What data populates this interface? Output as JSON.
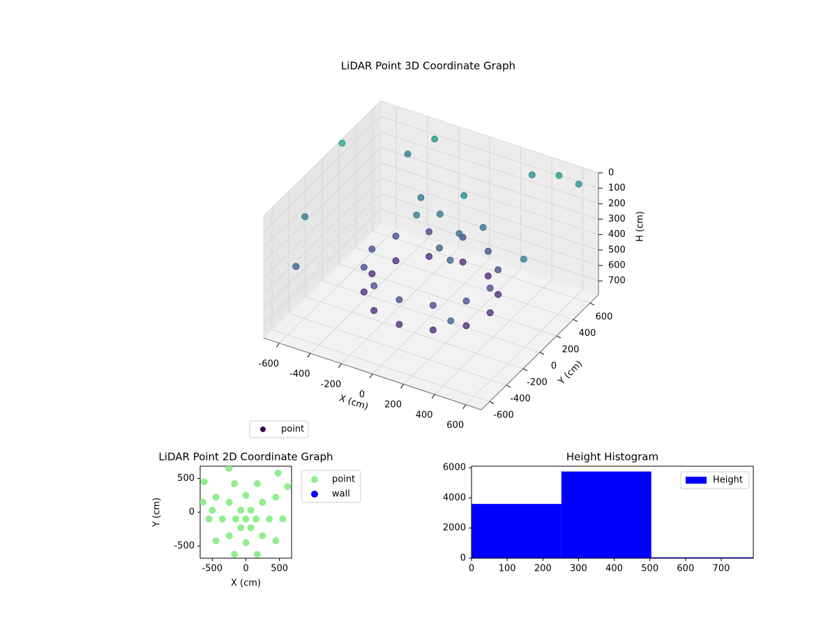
{
  "chart_data": [
    {
      "type": "scatter3d",
      "title": "LiDAR Point 3D Coordinate Graph",
      "xlabel": "X (cm)",
      "ylabel": "Y (cm)",
      "zlabel": "H (cm)",
      "xlim": [
        -700,
        700
      ],
      "ylim": [
        -700,
        700
      ],
      "zlim": [
        790,
        0
      ],
      "xticks": [
        -600,
        -400,
        -200,
        0,
        200,
        400,
        600
      ],
      "yticks": [
        -600,
        -400,
        -200,
        0,
        200,
        400,
        600
      ],
      "zticks": [
        0,
        100,
        200,
        300,
        400,
        500,
        600,
        700
      ],
      "colormap": "viridis",
      "grid": true,
      "legend": "lower left",
      "series": [
        {
          "name": "point",
          "color": "#440154",
          "x": [
            380,
            329,
            190,
            0,
            -190,
            -329,
            -380,
            -329,
            -190,
            0,
            190,
            329,
            380,
            329,
            190,
            0,
            -190,
            -329,
            -380,
            -329,
            -190,
            0,
            190,
            329,
            100,
            -50,
            150,
            -120,
            50,
            200,
            -200,
            0,
            -650,
            -600,
            -680,
            500,
            600,
            300,
            650,
            -300,
            450,
            -500
          ],
          "y": [
            0,
            190,
            329,
            380,
            329,
            190,
            0,
            -190,
            -329,
            -380,
            -329,
            -190,
            0,
            190,
            329,
            380,
            329,
            190,
            0,
            -190,
            -329,
            -380,
            -329,
            -190,
            150,
            200,
            -50,
            50,
            300,
            250,
            250,
            100,
            -300,
            -500,
            200,
            600,
            650,
            650,
            -100,
            600,
            -600,
            650
          ],
          "z": [
            480,
            480,
            480,
            480,
            480,
            480,
            480,
            480,
            480,
            480,
            480,
            480,
            640,
            640,
            640,
            640,
            640,
            640,
            640,
            640,
            640,
            640,
            640,
            640,
            300,
            250,
            350,
            200,
            150,
            280,
            220,
            400,
            200,
            400,
            0,
            30,
            80,
            120,
            150,
            60,
            350,
            250
          ]
        }
      ]
    },
    {
      "type": "scatter",
      "title": "LiDAR Point 2D Coordinate Graph",
      "xlabel": "X (cm)",
      "ylabel": "Y (cm)",
      "xlim": [
        -680,
        680
      ],
      "ylim": [
        -680,
        680
      ],
      "xticks": [
        -500,
        0,
        500
      ],
      "yticks": [
        -500,
        0,
        500
      ],
      "legend": "outside upper right",
      "series": [
        {
          "name": "point",
          "color": "#90ee90",
          "x": [
            550,
            445,
            170,
            -170,
            -445,
            -550,
            -445,
            -170,
            170,
            445,
            350,
            247,
            0,
            -247,
            -350,
            -247,
            0,
            247,
            150,
            75,
            -75,
            -150,
            -75,
            75,
            0,
            -500,
            -640,
            480,
            620,
            -620,
            -250
          ],
          "y": [
            -100,
            223,
            423,
            423,
            223,
            -100,
            -423,
            -623,
            -623,
            -423,
            -100,
            147,
            250,
            147,
            -100,
            -347,
            -450,
            -347,
            -100,
            30,
            30,
            -100,
            -230,
            -230,
            -100,
            30,
            150,
            580,
            380,
            450,
            650
          ]
        },
        {
          "name": "wall",
          "color": "#0000ff",
          "x": [],
          "y": []
        }
      ]
    },
    {
      "type": "histogram",
      "title": "Height Histogram",
      "bins": [
        0,
        252,
        504,
        790
      ],
      "xlim": [
        0,
        790
      ],
      "ylim": [
        0,
        6100
      ],
      "xticks": [
        0,
        100,
        200,
        300,
        400,
        500,
        600,
        700
      ],
      "yticks": [
        0,
        2000,
        4000,
        6000
      ],
      "legend": "upper right",
      "series": [
        {
          "name": "Height",
          "color": "#0000ff",
          "values": [
            3600,
            5750,
            60
          ]
        }
      ]
    }
  ]
}
